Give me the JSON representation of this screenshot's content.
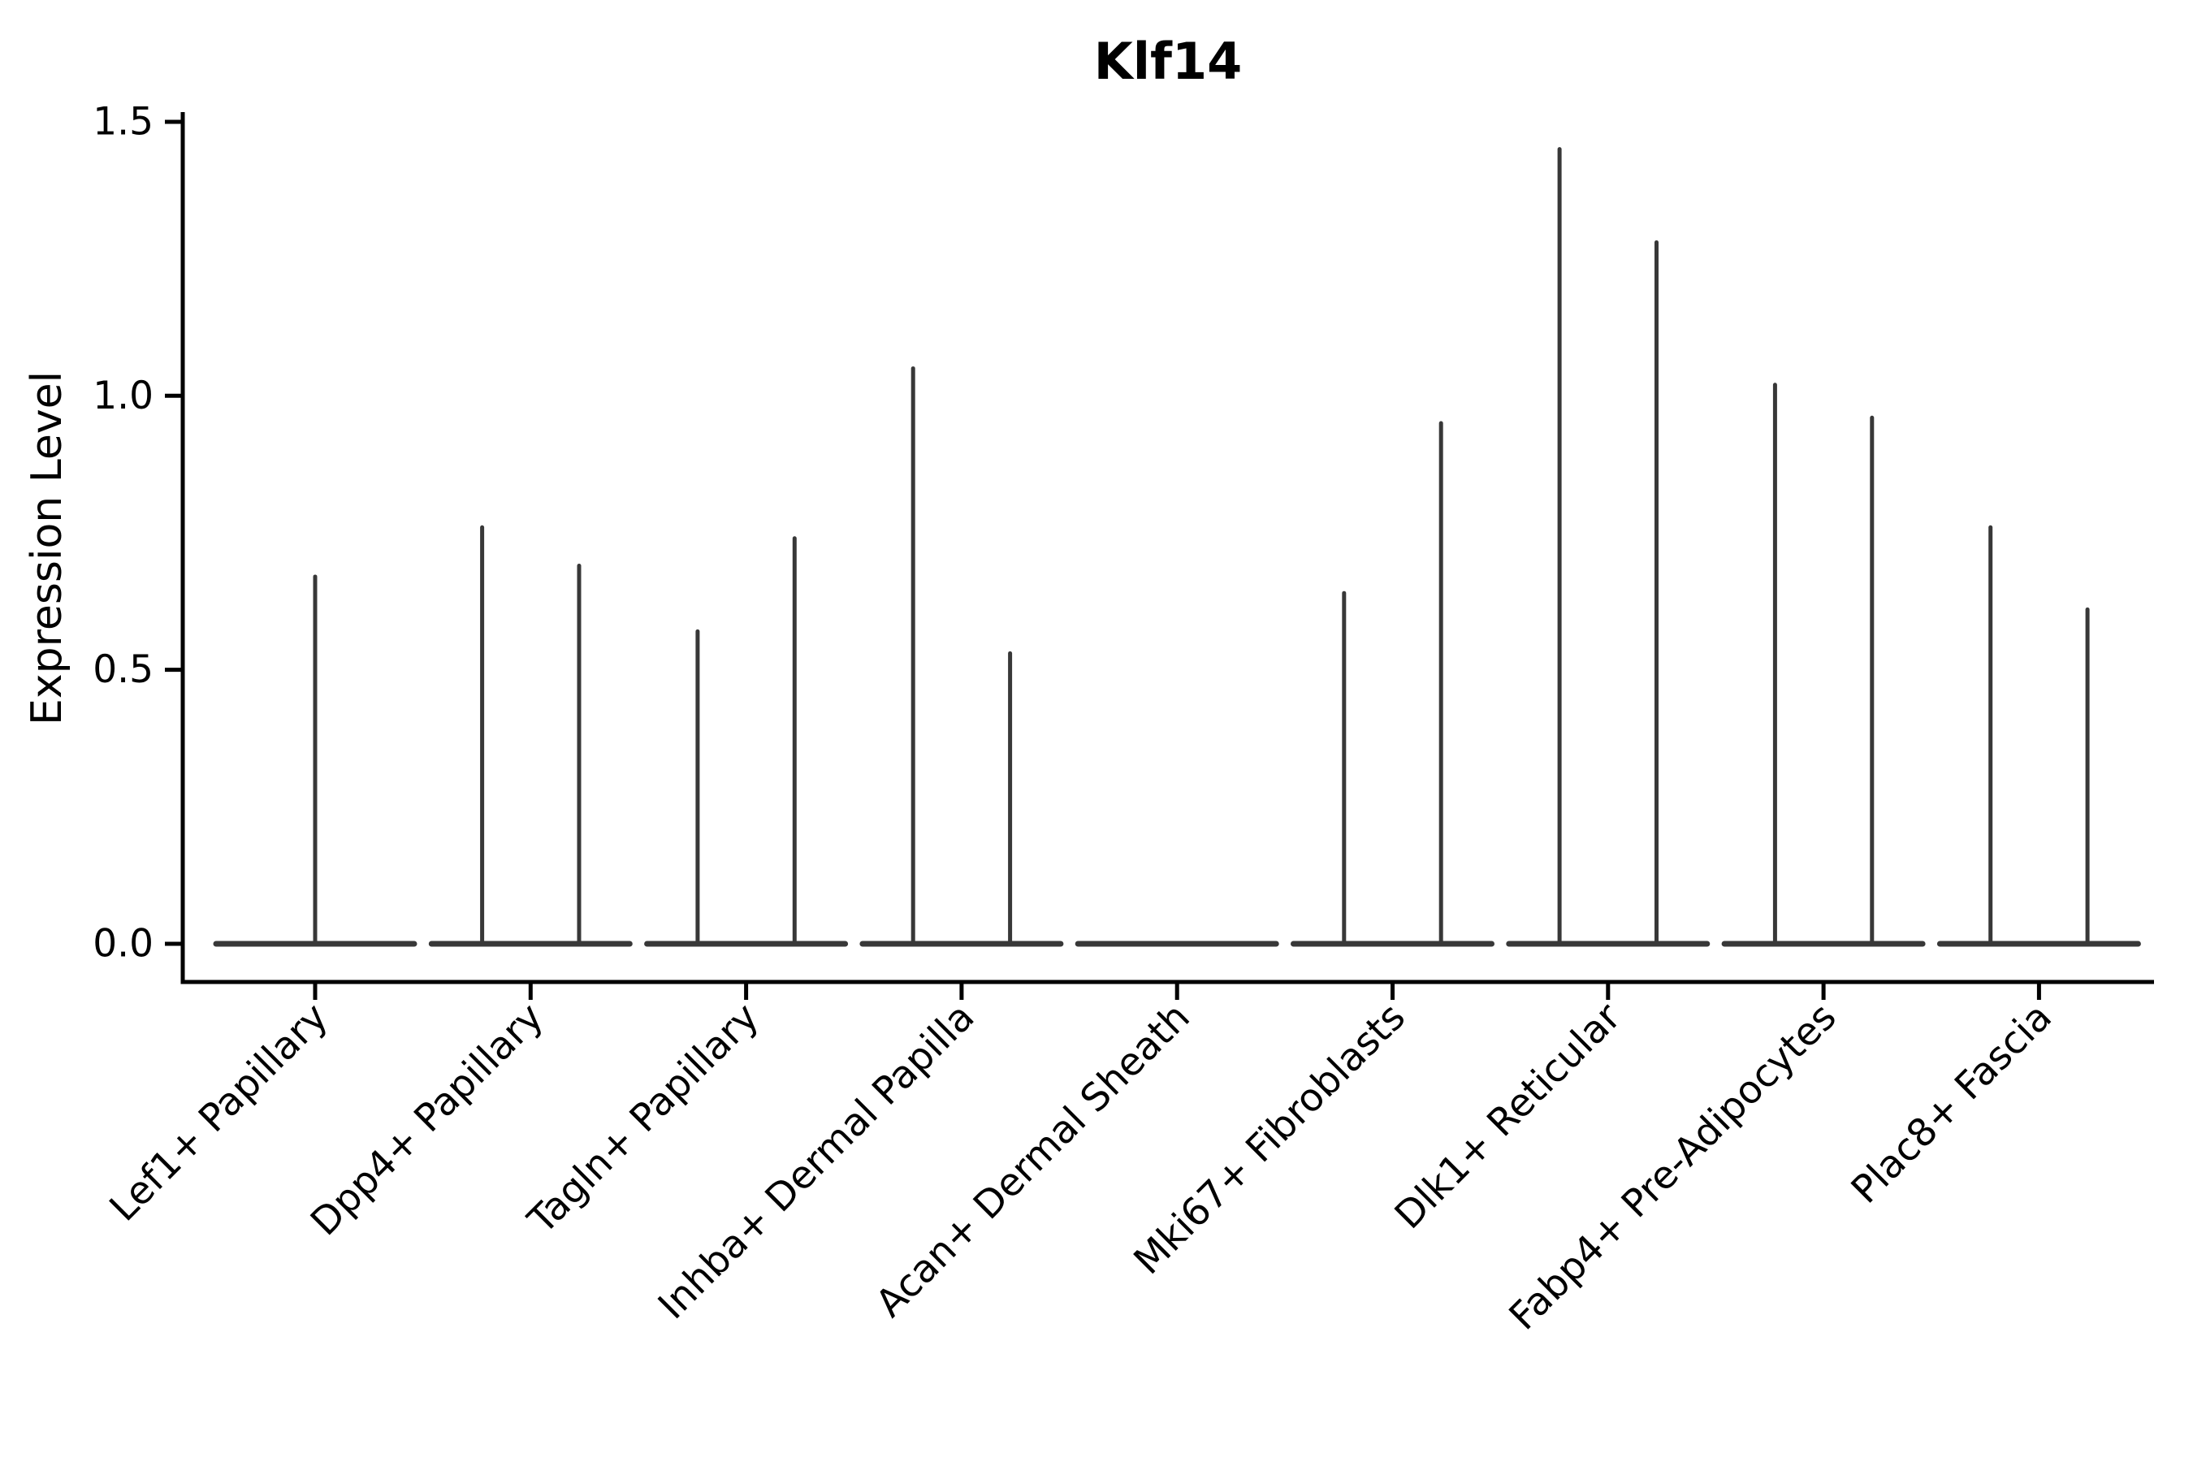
{
  "chart_data": {
    "type": "violin",
    "title": "Klf14",
    "ylabel": "Expression Level",
    "xlabel": "",
    "categories": [
      "Lef1+ Papillary",
      "Dpp4+ Papillary",
      "Tagln+ Papillary",
      "Inhba+ Dermal Papilla",
      "Acan+ Dermal Sheath",
      "Mki67+ Fibroblasts",
      "Dlk1+ Reticular",
      "Fabp4+ Pre-Adipocytes",
      "Plac8+ Fascia"
    ],
    "series": [
      {
        "category": "Lef1+ Papillary",
        "baseline": 0.0,
        "spike_offsets": [
          0
        ],
        "spike_maxima": [
          0.67
        ]
      },
      {
        "category": "Dpp4+ Papillary",
        "baseline": 0.0,
        "spike_offsets": [
          -0.225,
          0.225
        ],
        "spike_maxima": [
          0.76,
          0.69
        ]
      },
      {
        "category": "Tagln+ Papillary",
        "baseline": 0.0,
        "spike_offsets": [
          -0.225,
          0.225
        ],
        "spike_maxima": [
          0.57,
          0.74
        ]
      },
      {
        "category": "Inhba+ Dermal Papilla",
        "baseline": 0.0,
        "spike_offsets": [
          -0.225,
          0.225
        ],
        "spike_maxima": [
          1.05,
          0.53
        ]
      },
      {
        "category": "Acan+ Dermal Sheath",
        "baseline": 0.0,
        "spike_offsets": [],
        "spike_maxima": []
      },
      {
        "category": "Mki67+ Fibroblasts",
        "baseline": 0.0,
        "spike_offsets": [
          -0.225,
          0.225
        ],
        "spike_maxima": [
          0.64,
          0.95
        ]
      },
      {
        "category": "Dlk1+ Reticular",
        "baseline": 0.0,
        "spike_offsets": [
          -0.225,
          0.225
        ],
        "spike_maxima": [
          1.45,
          1.28
        ]
      },
      {
        "category": "Fabp4+ Pre-Adipocytes",
        "baseline": 0.0,
        "spike_offsets": [
          -0.225,
          0.225
        ],
        "spike_maxima": [
          1.02,
          0.96
        ]
      },
      {
        "category": "Plac8+ Fascia",
        "baseline": 0.0,
        "spike_offsets": [
          -0.225,
          0.225
        ],
        "spike_maxima": [
          0.76,
          0.61
        ]
      }
    ],
    "ytick_labels": [
      "0.0",
      "0.5",
      "1.0",
      "1.5"
    ],
    "ytick_values": [
      0.0,
      0.5,
      1.0,
      1.5
    ],
    "ylim": [
      0.0,
      1.5
    ],
    "grid": false,
    "legend": null,
    "style_note": "violins collapsed to a flat bar at 0 expression with thin density spikes rising to each group maximum"
  },
  "colors": {
    "violin": "#383838",
    "axis": "#000000",
    "text": "#000000",
    "background": "#ffffff"
  }
}
